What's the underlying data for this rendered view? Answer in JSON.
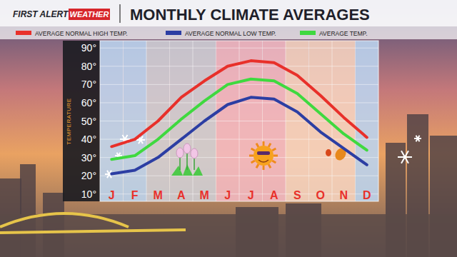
{
  "chart_data": {
    "type": "line",
    "title": "MONTHLY CLIMATE AVERAGES",
    "annotations": [
      "FIRST ALERT",
      "WEATHER"
    ],
    "y_label": "TEMPERATURE",
    "categories": [
      "J",
      "F",
      "M",
      "A",
      "M",
      "J",
      "J",
      "A",
      "S",
      "O",
      "N",
      "D"
    ],
    "series": [
      {
        "name": "AVERAGE NORMAL HIGH TEMP.",
        "color": "#e8302a",
        "values": [
          36,
          40,
          50,
          63,
          72,
          80,
          83,
          82,
          75,
          64,
          52,
          41
        ]
      },
      {
        "name": "AVERAGE NORMAL LOW TEMP.",
        "color": "#2c3ea3",
        "values": [
          21,
          23,
          30,
          40,
          50,
          59,
          63,
          62,
          55,
          44,
          35,
          26
        ]
      },
      {
        "name": "AVERAGE TEMP.",
        "color": "#3fd93f",
        "values": [
          29,
          31,
          40,
          51,
          61,
          70,
          73,
          72,
          65,
          54,
          43,
          34
        ]
      }
    ],
    "ylim": [
      6,
      94
    ],
    "yticks": [
      {
        "value": 10,
        "label": "10°"
      },
      {
        "value": 20,
        "label": "20°"
      },
      {
        "value": 30,
        "label": "30°"
      },
      {
        "value": 40,
        "label": "40°"
      },
      {
        "value": 50,
        "label": "50°"
      },
      {
        "value": 60,
        "label": "60°"
      },
      {
        "value": 70,
        "label": "70°"
      },
      {
        "value": 80,
        "label": "80°"
      },
      {
        "value": 90,
        "label": "90°"
      }
    ],
    "grid": true,
    "legend": "top"
  }
}
